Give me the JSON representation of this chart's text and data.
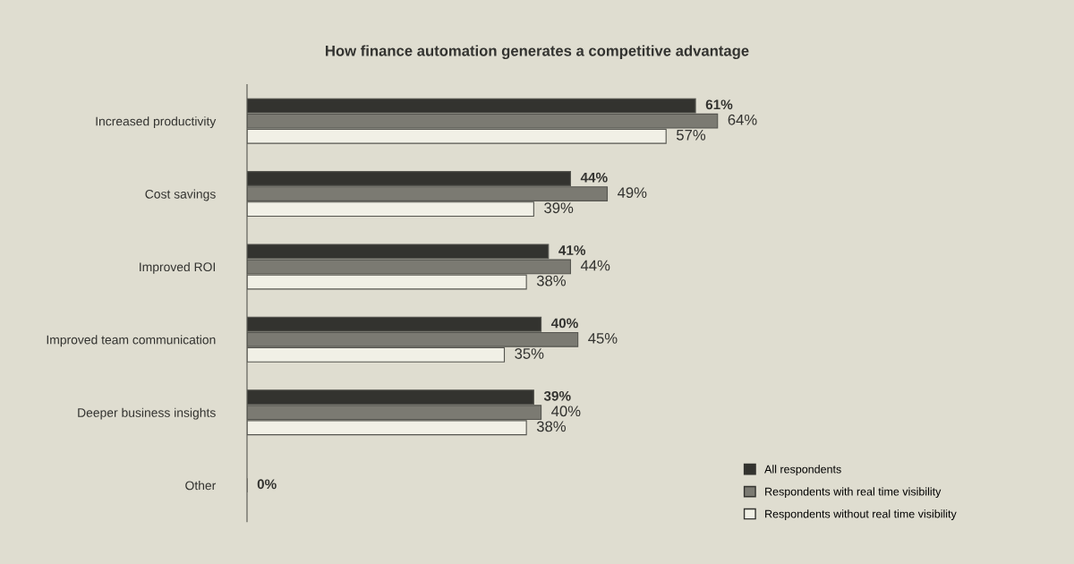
{
  "chart_data": {
    "type": "bar",
    "orientation": "horizontal",
    "title": "How finance automation generates a competitive advantage",
    "categories": [
      "Increased productivity",
      "Cost savings",
      "Improved ROI",
      "Improved team communication",
      "Deeper business insights",
      "Other"
    ],
    "series": [
      {
        "name": "All respondents",
        "color": "#33332f",
        "values": [
          61,
          44,
          41,
          40,
          39,
          0
        ],
        "value_labels": [
          "61%",
          "44%",
          "41%",
          "40%",
          "39%",
          "0%"
        ]
      },
      {
        "name": "Respondents with real time visibility",
        "color": "#7b7a72",
        "values": [
          64,
          49,
          44,
          45,
          40,
          null
        ],
        "value_labels": [
          "64%",
          "49%",
          "44%",
          "45%",
          "40%",
          null
        ]
      },
      {
        "name": "Respondents without real time visibility",
        "color": "#f1f0e6",
        "values": [
          57,
          39,
          38,
          35,
          38,
          null
        ],
        "value_labels": [
          "57%",
          "39%",
          "38%",
          "35%",
          "38%",
          null
        ]
      }
    ],
    "tick_labels": "y",
    "grid": false,
    "legend": "bottom right"
  }
}
